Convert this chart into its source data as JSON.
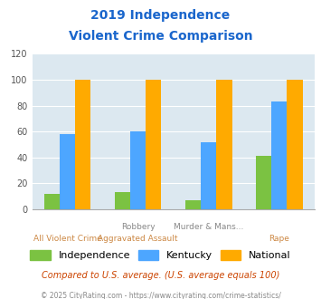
{
  "title_line1": "2019 Independence",
  "title_line2": "Violent Crime Comparison",
  "independence": [
    12,
    13,
    7,
    41
  ],
  "kentucky": [
    58,
    60,
    52,
    83
  ],
  "national": [
    100,
    100,
    100,
    100
  ],
  "colors": {
    "independence": "#7bc242",
    "kentucky": "#4da6ff",
    "national": "#ffaa00"
  },
  "ylim": [
    0,
    120
  ],
  "yticks": [
    0,
    20,
    40,
    60,
    80,
    100,
    120
  ],
  "background_color": "#dce8f0",
  "title_color": "#1a66cc",
  "top_labels": [
    "",
    "Robbery",
    "Murder & Mans...",
    ""
  ],
  "bottom_labels": [
    "All Violent Crime",
    "Aggravated Assault",
    "",
    "Rape"
  ],
  "top_label_color": "#888888",
  "bottom_label_color": "#cc8844",
  "footnote": "Compared to U.S. average. (U.S. average equals 100)",
  "copyright": "© 2025 CityRating.com - https://www.cityrating.com/crime-statistics/",
  "footnote_color": "#cc4400",
  "copyright_color": "#888888",
  "legend_labels": [
    "Independence",
    "Kentucky",
    "National"
  ]
}
